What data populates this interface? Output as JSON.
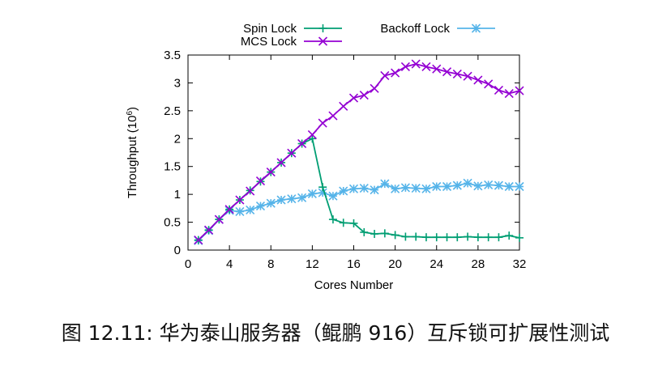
{
  "caption": "图 12.11: 华为泰山服务器（鲲鹏 916）互斥锁可扩展性测试",
  "chart_data": {
    "type": "line",
    "title": "",
    "xlabel": "Cores Number",
    "ylabel_base": "Throughput (10",
    "ylabel_sup": "6",
    "ylabel_end": ")",
    "xlim": [
      0,
      32
    ],
    "ylim": [
      0,
      3.5
    ],
    "xticks": [
      0,
      4,
      8,
      12,
      16,
      20,
      24,
      28,
      32
    ],
    "yticks": [
      0,
      0.5,
      1,
      1.5,
      2,
      2.5,
      3,
      3.5
    ],
    "ytick_labels": [
      "0",
      "0.5",
      "1",
      "1.5",
      "2",
      "2.5",
      "3",
      "3.5"
    ],
    "grid": false,
    "legend_position": "top",
    "x": [
      1,
      2,
      3,
      4,
      5,
      6,
      7,
      8,
      9,
      10,
      11,
      12,
      13,
      14,
      15,
      16,
      17,
      18,
      19,
      20,
      21,
      22,
      23,
      24,
      25,
      26,
      27,
      28,
      29,
      30,
      31,
      32
    ],
    "series": [
      {
        "name": "Spin Lock",
        "color": "#009e73",
        "marker": "plus",
        "values": [
          0.18,
          0.36,
          0.55,
          0.73,
          0.9,
          1.07,
          1.23,
          1.4,
          1.57,
          1.74,
          1.91,
          2.0,
          1.13,
          0.55,
          0.49,
          0.48,
          0.32,
          0.29,
          0.3,
          0.27,
          0.24,
          0.24,
          0.23,
          0.23,
          0.23,
          0.23,
          0.24,
          0.23,
          0.23,
          0.23,
          0.26,
          0.22
        ]
      },
      {
        "name": "MCS Lock",
        "color": "#9400d3",
        "marker": "cross",
        "values": [
          0.18,
          0.36,
          0.55,
          0.73,
          0.9,
          1.06,
          1.24,
          1.4,
          1.57,
          1.74,
          1.91,
          2.07,
          2.28,
          2.41,
          2.58,
          2.73,
          2.78,
          2.9,
          3.13,
          3.18,
          3.29,
          3.34,
          3.29,
          3.25,
          3.2,
          3.16,
          3.12,
          3.05,
          2.98,
          2.87,
          2.81,
          2.86
        ]
      },
      {
        "name": "Backoff Lock",
        "color": "#56b4e9",
        "marker": "star",
        "values": [
          0.17,
          0.35,
          0.55,
          0.71,
          0.69,
          0.72,
          0.79,
          0.84,
          0.9,
          0.92,
          0.94,
          1.01,
          1.03,
          0.97,
          1.06,
          1.1,
          1.11,
          1.08,
          1.19,
          1.1,
          1.12,
          1.11,
          1.1,
          1.14,
          1.14,
          1.16,
          1.2,
          1.15,
          1.17,
          1.16,
          1.14,
          1.14
        ]
      }
    ]
  }
}
